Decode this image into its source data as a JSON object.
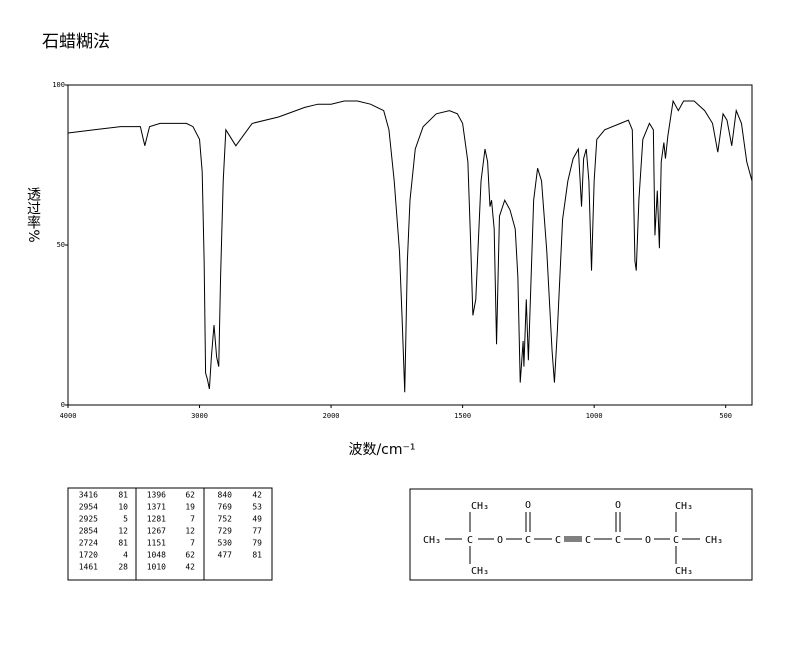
{
  "chart_data": {
    "type": "line",
    "title": "石蜡糊法",
    "x_label": "波数/cm⁻¹",
    "y_label": "透过率%",
    "xlim": [
      4000,
      400
    ],
    "ylim": [
      0,
      100
    ],
    "xticks": [
      4000,
      3000,
      2000,
      1500,
      1000,
      500
    ],
    "yticks": [
      0,
      50,
      100
    ],
    "color": "#000000",
    "x": [
      4000,
      3800,
      3600,
      3450,
      3416,
      3380,
      3300,
      3100,
      3050,
      3000,
      2980,
      2965,
      2954,
      2940,
      2925,
      2910,
      2890,
      2870,
      2854,
      2840,
      2820,
      2800,
      2724,
      2600,
      2400,
      2200,
      2100,
      2000,
      1950,
      1900,
      1850,
      1800,
      1780,
      1760,
      1740,
      1730,
      1720,
      1710,
      1700,
      1680,
      1650,
      1600,
      1550,
      1520,
      1500,
      1480,
      1470,
      1461,
      1450,
      1430,
      1415,
      1405,
      1396,
      1390,
      1380,
      1371,
      1360,
      1340,
      1320,
      1300,
      1290,
      1281,
      1270,
      1267,
      1258,
      1250,
      1240,
      1230,
      1215,
      1200,
      1180,
      1160,
      1151,
      1140,
      1120,
      1100,
      1080,
      1060,
      1048,
      1040,
      1030,
      1020,
      1010,
      1000,
      990,
      960,
      900,
      870,
      855,
      845,
      840,
      830,
      815,
      790,
      775,
      769,
      760,
      752,
      745,
      735,
      729,
      720,
      700,
      680,
      660,
      620,
      580,
      550,
      530,
      510,
      495,
      477,
      460,
      440,
      420,
      400
    ],
    "values": [
      85,
      86,
      87,
      87,
      81,
      87,
      88,
      88,
      87,
      83,
      73,
      45,
      10,
      8,
      5,
      15,
      25,
      15,
      12,
      40,
      70,
      86,
      81,
      88,
      90,
      93,
      94,
      94,
      95,
      95,
      94,
      92,
      86,
      70,
      48,
      27,
      4,
      45,
      64,
      80,
      87,
      91,
      92,
      91,
      88,
      76,
      52,
      28,
      33,
      70,
      80,
      76,
      62,
      64,
      55,
      19,
      59,
      64,
      61,
      55,
      40,
      7,
      20,
      12,
      33,
      14,
      39,
      64,
      74,
      70,
      48,
      17,
      7,
      23,
      58,
      70,
      77,
      80,
      62,
      77,
      80,
      70,
      42,
      70,
      83,
      86,
      88,
      89,
      86,
      45,
      42,
      64,
      83,
      88,
      86,
      53,
      67,
      49,
      76,
      82,
      77,
      84,
      95,
      92,
      95,
      95,
      92,
      88,
      79,
      91,
      89,
      81,
      92,
      88,
      76,
      70
    ]
  },
  "peak_table": {
    "wavenumbers": [
      3416,
      2954,
      2925,
      2854,
      2724,
      1720,
      1461,
      1396,
      1371,
      1281,
      1267,
      1151,
      1048,
      1010,
      840,
      769,
      752,
      729,
      530,
      477
    ],
    "transmittances": [
      81,
      10,
      5,
      12,
      81,
      4,
      28,
      62,
      19,
      7,
      12,
      7,
      62,
      42,
      42,
      53,
      49,
      77,
      79,
      81
    ]
  },
  "structure": {
    "atoms": [
      "CH₃",
      "C",
      "CH₃",
      "CH₃",
      "O",
      "C",
      "O",
      "C",
      "C",
      "C",
      "O",
      "O",
      "C",
      "CH₃",
      "CH₃",
      "CH₃"
    ]
  }
}
